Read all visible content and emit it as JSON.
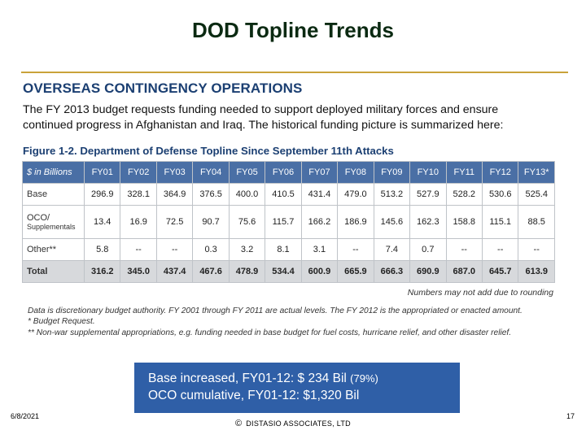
{
  "slide": {
    "title": "DOD Topline Trends",
    "date": "6/8/2021",
    "copyright_symbol": "©",
    "copyright": "DISTASIO ASSOCIATES, LTD",
    "page_number": "17"
  },
  "document": {
    "section_heading": "OVERSEAS CONTINGENCY OPERATIONS",
    "intro_line1": "The FY 2013 budget requests funding needed to support deployed military forces and ensure",
    "intro_line2": "continued progress in Afghanistan and Iraq.  The historical funding picture is summarized here:",
    "figure_caption": "Figure 1-2.  Department of Defense Topline Since September 11th Attacks",
    "table": {
      "row_header": "$ in Billions",
      "years": [
        "FY01",
        "FY02",
        "FY03",
        "FY04",
        "FY05",
        "FY06",
        "FY07",
        "FY08",
        "FY09",
        "FY10",
        "FY11",
        "FY12",
        "FY13*"
      ],
      "rows": [
        {
          "label": "Base",
          "values": [
            "296.9",
            "328.1",
            "364.9",
            "376.5",
            "400.0",
            "410.5",
            "431.4",
            "479.0",
            "513.2",
            "527.9",
            "528.2",
            "530.6",
            "525.4"
          ]
        },
        {
          "label": "OCO/",
          "sublabel": "Supplementals",
          "values": [
            "13.4",
            "16.9",
            "72.5",
            "90.7",
            "75.6",
            "115.7",
            "166.2",
            "186.9",
            "145.6",
            "162.3",
            "158.8",
            "115.1",
            "88.5"
          ]
        },
        {
          "label": "Other**",
          "values": [
            "5.8",
            "--",
            "--",
            "0.3",
            "3.2",
            "8.1",
            "3.1",
            "--",
            "7.4",
            "0.7",
            "--",
            "--",
            "--"
          ]
        },
        {
          "label": "Total",
          "values": [
            "316.2",
            "345.0",
            "437.4",
            "467.6",
            "478.9",
            "534.4",
            "600.9",
            "665.9",
            "666.3",
            "690.9",
            "687.0",
            "645.7",
            "613.9"
          ]
        }
      ]
    },
    "rounding_note": "Numbers may not add due to rounding",
    "note1": "Data is discretionary budget authority.  FY 2001 through FY 2011 are actual levels.  The FY 2012 is the appropriated or enacted amount.",
    "note2": "*  Budget Request.",
    "note3": "** Non-war supplemental appropriations, e.g. funding needed in base budget for fuel costs, hurricane relief, and other disaster relief."
  },
  "summary": {
    "line1": "Base increased, FY01-12:   $  234 Bil",
    "line1_pct": "(79%)",
    "line2": "OCO cumulative, FY01-12:  $1,320 Bil"
  },
  "colors": {
    "header_blue": "#4a6fa5",
    "heading_navy": "#1b3f72",
    "summary_blue": "#2f5fa7",
    "rule_gold": "#c9a23a",
    "total_gray": "#d7d9dc"
  }
}
